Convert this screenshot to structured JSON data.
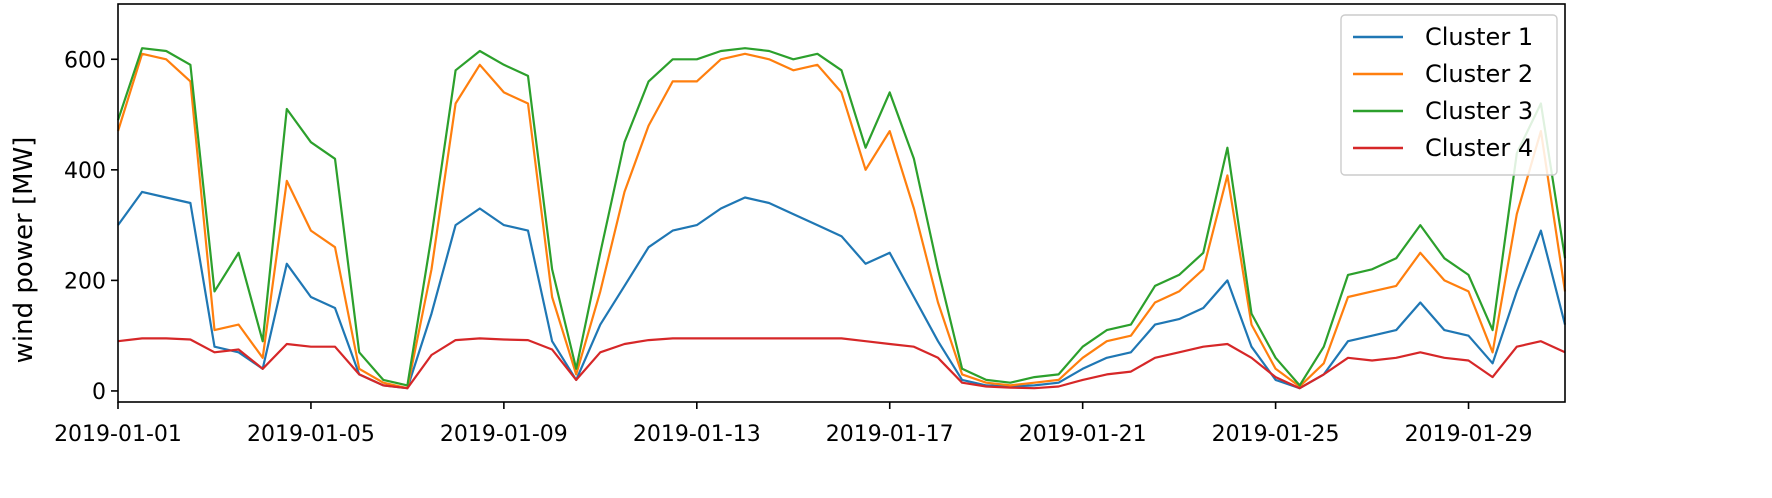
{
  "chart_data": {
    "type": "line",
    "title": "",
    "xlabel": "",
    "ylabel": "wind power [MW]",
    "xlim": [
      "2019-01-01",
      "2019-01-31"
    ],
    "ylim": [
      -20,
      700
    ],
    "x_ticks": [
      "2019-01-01",
      "2019-01-05",
      "2019-01-09",
      "2019-01-13",
      "2019-01-17",
      "2019-01-21",
      "2019-01-25",
      "2019-01-29"
    ],
    "y_ticks": [
      0,
      200,
      400,
      600
    ],
    "grid": false,
    "legend_position": "top-right",
    "x": [
      "2019-01-01",
      "2019-01-01 12:00",
      "2019-01-02",
      "2019-01-02 12:00",
      "2019-01-03",
      "2019-01-03 12:00",
      "2019-01-04",
      "2019-01-04 12:00",
      "2019-01-05",
      "2019-01-05 12:00",
      "2019-01-06",
      "2019-01-06 12:00",
      "2019-01-07",
      "2019-01-07 12:00",
      "2019-01-08",
      "2019-01-08 12:00",
      "2019-01-09",
      "2019-01-09 12:00",
      "2019-01-10",
      "2019-01-10 12:00",
      "2019-01-11",
      "2019-01-11 12:00",
      "2019-01-12",
      "2019-01-12 12:00",
      "2019-01-13",
      "2019-01-13 12:00",
      "2019-01-14",
      "2019-01-14 12:00",
      "2019-01-15",
      "2019-01-15 12:00",
      "2019-01-16",
      "2019-01-16 12:00",
      "2019-01-17",
      "2019-01-17 12:00",
      "2019-01-18",
      "2019-01-18 12:00",
      "2019-01-19",
      "2019-01-19 12:00",
      "2019-01-20",
      "2019-01-20 12:00",
      "2019-01-21",
      "2019-01-21 12:00",
      "2019-01-22",
      "2019-01-22 12:00",
      "2019-01-23",
      "2019-01-23 12:00",
      "2019-01-24",
      "2019-01-24 12:00",
      "2019-01-25",
      "2019-01-25 12:00",
      "2019-01-26",
      "2019-01-26 12:00",
      "2019-01-27",
      "2019-01-27 12:00",
      "2019-01-28",
      "2019-01-28 12:00",
      "2019-01-29",
      "2019-01-29 12:00",
      "2019-01-30",
      "2019-01-30 12:00",
      "2019-01-31"
    ],
    "series": [
      {
        "name": "Cluster 1",
        "color": "#1f77b4",
        "values": [
          300,
          360,
          350,
          340,
          80,
          70,
          40,
          230,
          170,
          150,
          30,
          10,
          5,
          140,
          300,
          330,
          300,
          290,
          90,
          20,
          120,
          190,
          260,
          290,
          300,
          330,
          350,
          340,
          320,
          300,
          280,
          230,
          250,
          170,
          90,
          20,
          10,
          8,
          10,
          15,
          40,
          60,
          70,
          120,
          130,
          150,
          200,
          80,
          20,
          5,
          30,
          90,
          100,
          110,
          160,
          110,
          100,
          50,
          180,
          290,
          120
        ]
      },
      {
        "name": "Cluster 2",
        "color": "#ff7f0e",
        "values": [
          470,
          610,
          600,
          560,
          110,
          120,
          60,
          380,
          290,
          260,
          40,
          15,
          5,
          220,
          520,
          590,
          540,
          520,
          170,
          30,
          180,
          360,
          480,
          560,
          560,
          600,
          610,
          600,
          580,
          590,
          540,
          400,
          470,
          330,
          160,
          30,
          15,
          10,
          15,
          20,
          60,
          90,
          100,
          160,
          180,
          220,
          390,
          120,
          40,
          8,
          50,
          170,
          180,
          190,
          250,
          200,
          180,
          70,
          320,
          470,
          180
        ]
      },
      {
        "name": "Cluster 3",
        "color": "#2ca02c",
        "values": [
          490,
          620,
          615,
          590,
          180,
          250,
          90,
          510,
          450,
          420,
          70,
          20,
          10,
          280,
          580,
          615,
          590,
          570,
          220,
          40,
          250,
          450,
          560,
          600,
          600,
          615,
          620,
          615,
          600,
          610,
          580,
          440,
          540,
          420,
          220,
          40,
          20,
          15,
          25,
          30,
          80,
          110,
          120,
          190,
          210,
          250,
          440,
          140,
          60,
          10,
          80,
          210,
          220,
          240,
          300,
          240,
          210,
          110,
          430,
          520,
          240
        ]
      },
      {
        "name": "Cluster 4",
        "color": "#d62728",
        "values": [
          90,
          95,
          95,
          93,
          70,
          75,
          40,
          85,
          80,
          80,
          30,
          10,
          5,
          65,
          92,
          95,
          93,
          92,
          75,
          20,
          70,
          85,
          92,
          95,
          95,
          95,
          95,
          95,
          95,
          95,
          95,
          90,
          85,
          80,
          60,
          15,
          8,
          6,
          5,
          8,
          20,
          30,
          35,
          60,
          70,
          80,
          85,
          60,
          25,
          5,
          30,
          60,
          55,
          60,
          70,
          60,
          55,
          25,
          80,
          90,
          70
        ]
      }
    ]
  }
}
